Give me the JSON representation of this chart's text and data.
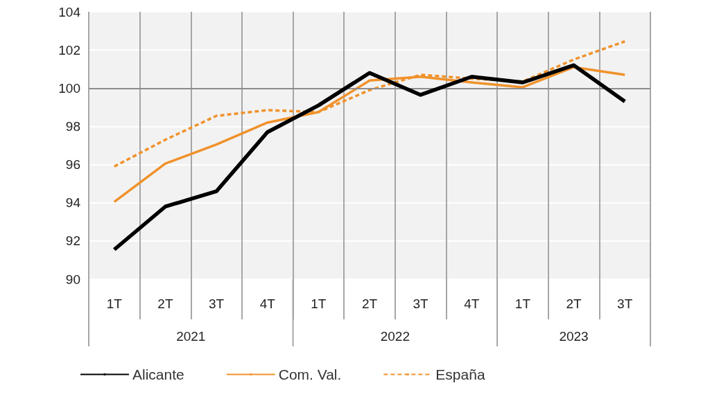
{
  "chart_data": {
    "type": "line",
    "categories": [
      "1T",
      "2T",
      "3T",
      "4T",
      "1T",
      "2T",
      "3T",
      "4T",
      "1T",
      "2T",
      "3T"
    ],
    "annotations": [
      "2021",
      "2022",
      "2023"
    ],
    "series": [
      {
        "name": "Alicante",
        "color": "#000000",
        "line_style": "solid",
        "values": [
          91.55,
          93.8,
          94.6,
          97.7,
          99.1,
          100.8,
          99.65,
          100.6,
          100.3,
          101.2,
          99.3
        ]
      },
      {
        "name": "Com. Val.",
        "color": "#f0922b",
        "line_style": "solid",
        "values": [
          94.05,
          96.05,
          97.05,
          98.2,
          98.75,
          100.4,
          100.6,
          100.3,
          100.05,
          101.1,
          100.7
        ]
      },
      {
        "name": "España",
        "color": "#f0922b",
        "line_style": "dashed",
        "values": [
          95.9,
          97.3,
          98.55,
          98.85,
          98.75,
          99.9,
          100.7,
          100.5,
          100.35,
          101.5,
          102.45
        ]
      }
    ],
    "ylim": [
      90,
      104
    ],
    "yticks": [
      90,
      92,
      94,
      96,
      98,
      100,
      102,
      104
    ],
    "ref_lines": [
      {
        "axis": "y",
        "value": 100,
        "color": "#8c8c8c"
      }
    ],
    "grid": true,
    "legend": "bottom",
    "marker": "none"
  }
}
